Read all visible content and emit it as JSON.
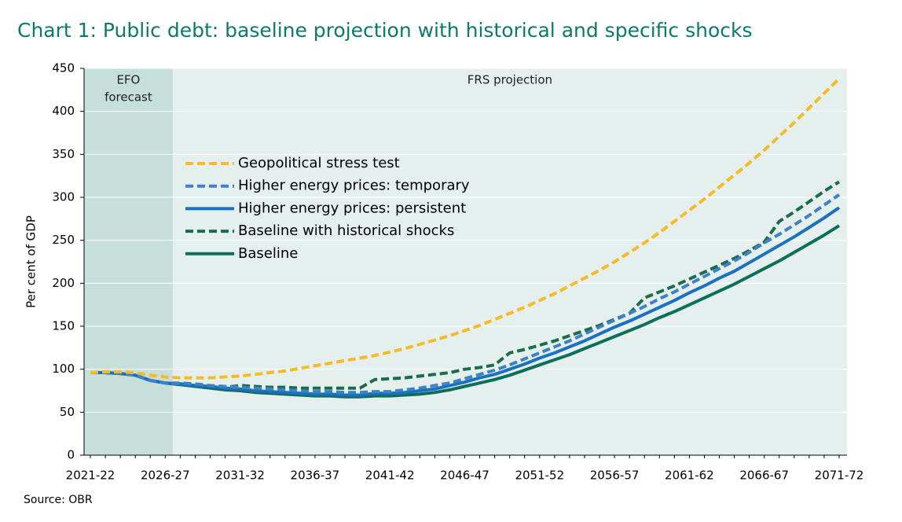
{
  "chart_data": {
    "type": "line",
    "title": "Chart 1: Public debt: baseline projection with historical and specific shocks",
    "ylabel": "Per cent of GDP",
    "source": "Source: OBR",
    "regions": [
      {
        "label": [
          "EFO",
          "forecast"
        ]
      },
      {
        "label": [
          "FRS projection"
        ]
      }
    ],
    "categories": [
      "2021-22",
      null,
      null,
      null,
      null,
      "2026-27",
      null,
      null,
      null,
      null,
      "2031-32",
      null,
      null,
      null,
      null,
      "2036-37",
      null,
      null,
      null,
      null,
      "2041-42",
      null,
      null,
      null,
      null,
      "2046-47",
      null,
      null,
      null,
      null,
      "2051-52",
      null,
      null,
      null,
      null,
      "2056-57",
      null,
      null,
      null,
      null,
      "2061-62",
      null,
      null,
      null,
      null,
      "2066-67",
      null,
      null,
      null,
      null,
      "2071-72"
    ],
    "ylim": [
      0,
      450
    ],
    "yticks": [
      0,
      50,
      100,
      150,
      200,
      250,
      300,
      350,
      400,
      450
    ],
    "grid": true,
    "series": [
      {
        "name": "Geopolitical stress test",
        "color": "#f6bb28",
        "dash": true,
        "values": [
          96,
          97,
          97,
          96,
          93,
          91,
          90,
          90,
          90,
          91,
          92,
          94,
          96,
          98,
          101,
          104,
          107,
          110,
          113,
          116,
          120,
          124,
          129,
          134,
          139,
          145,
          151,
          158,
          165,
          172,
          180,
          188,
          197,
          206,
          215,
          225,
          236,
          247,
          259,
          272,
          285,
          298,
          312,
          326,
          340,
          355,
          371,
          387,
          404,
          421,
          438
        ]
      },
      {
        "name": "Higher energy prices: temporary",
        "color": "#3d82c8",
        "dash": true,
        "values": [
          96,
          96,
          95,
          93,
          87,
          84,
          84,
          83,
          81,
          80,
          79,
          78,
          77,
          76,
          75,
          74,
          74,
          73,
          73,
          74,
          74,
          76,
          78,
          81,
          84,
          89,
          94,
          99,
          105,
          112,
          119,
          126,
          133,
          141,
          149,
          157,
          165,
          173,
          182,
          190,
          199,
          208,
          217,
          226,
          236,
          247,
          257,
          268,
          279,
          291,
          303
        ]
      },
      {
        "name": "Higher energy prices: persistent",
        "color": "#1b70c0",
        "dash": false,
        "values": [
          96,
          96,
          95,
          93,
          87,
          84,
          83,
          81,
          80,
          78,
          77,
          75,
          74,
          73,
          72,
          71,
          71,
          70,
          70,
          72,
          72,
          73,
          75,
          77,
          81,
          85,
          90,
          94,
          100,
          106,
          113,
          119,
          126,
          133,
          141,
          149,
          156,
          164,
          172,
          180,
          189,
          197,
          206,
          214,
          224,
          234,
          244,
          254,
          265,
          276,
          288
        ]
      },
      {
        "name": "Baseline with historical shocks",
        "color": "#1a6d4c",
        "dash": true,
        "values": [
          96,
          96,
          95,
          93,
          87,
          84,
          83,
          81,
          80,
          79,
          81,
          80,
          79,
          79,
          78,
          78,
          78,
          78,
          78,
          88,
          89,
          90,
          92,
          94,
          96,
          100,
          102,
          105,
          119,
          123,
          128,
          133,
          139,
          145,
          151,
          158,
          165,
          183,
          190,
          197,
          205,
          213,
          221,
          229,
          238,
          248,
          272,
          283,
          295,
          307,
          318
        ]
      },
      {
        "name": "Baseline",
        "color": "#0c6f5a",
        "dash": false,
        "values": [
          96,
          96,
          95,
          93,
          87,
          84,
          82,
          80,
          78,
          76,
          75,
          73,
          72,
          71,
          70,
          69,
          69,
          68,
          68,
          69,
          69,
          70,
          71,
          73,
          76,
          80,
          84,
          88,
          93,
          99,
          105,
          111,
          117,
          124,
          131,
          138,
          145,
          152,
          160,
          167,
          175,
          183,
          191,
          199,
          208,
          217,
          226,
          236,
          246,
          256,
          267
        ]
      }
    ]
  }
}
